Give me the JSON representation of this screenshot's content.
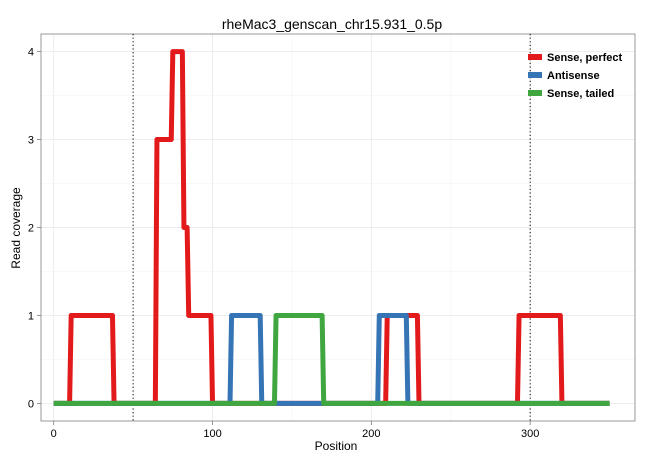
{
  "chart_data": {
    "type": "line",
    "title": "rheMac3_genscan_chr15.931_0.5p",
    "xlabel": "Position",
    "ylabel": "Read coverage",
    "xlim": [
      -8,
      366
    ],
    "ylim": [
      -0.2,
      4.2
    ],
    "x_ticks": [
      0,
      100,
      200,
      300
    ],
    "y_ticks": [
      0,
      1,
      2,
      3,
      4
    ],
    "grid": true,
    "reference_lines": [
      50,
      300
    ],
    "legend_position": "top-right",
    "series": [
      {
        "name": "Sense, perfect",
        "color": "#e31a1c",
        "x": [
          0,
          10,
          11,
          37,
          38,
          64,
          65,
          74,
          75,
          81,
          82,
          84,
          85,
          99,
          100,
          209,
          210,
          229,
          230,
          292,
          293,
          319,
          320,
          350
        ],
        "y": [
          0,
          0,
          1,
          1,
          0,
          0,
          3,
          3,
          4,
          4,
          2,
          2,
          1,
          1,
          0,
          0,
          1,
          1,
          0,
          0,
          1,
          1,
          0,
          0
        ]
      },
      {
        "name": "Antisense",
        "color": "#3574b5",
        "x": [
          0,
          111,
          112,
          130,
          131,
          204,
          205,
          222,
          223,
          350
        ],
        "y": [
          0,
          0,
          1,
          1,
          0,
          0,
          1,
          1,
          0,
          0
        ]
      },
      {
        "name": "Sense, tailed",
        "color": "#3fa640",
        "x": [
          0,
          139,
          140,
          169,
          170,
          350
        ],
        "y": [
          0,
          0,
          1,
          1,
          0,
          0
        ]
      }
    ]
  }
}
